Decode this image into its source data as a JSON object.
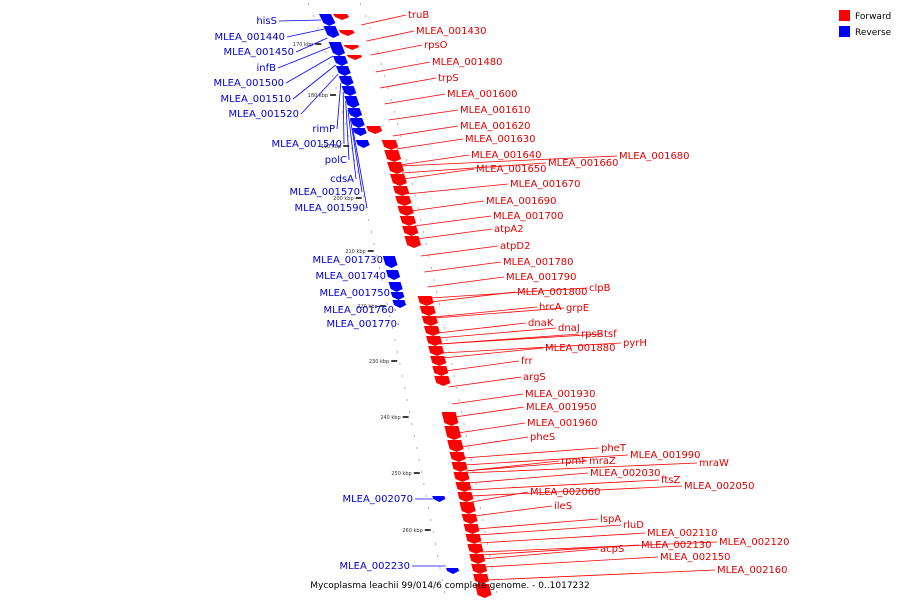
{
  "caption": "Mycoplasma leachii 99/014/6 complete genome. - 0..1017232",
  "legend": [
    {
      "label": "Forward",
      "color": "#ff0000"
    },
    {
      "label": "Reverse",
      "color": "#0000ff"
    }
  ],
  "ticks": [
    "170 kbp",
    "180 kbp",
    "190 kbp",
    "200 kbp",
    "210 kbp",
    "220 kbp",
    "230 kbp",
    "240 kbp",
    "250 kbp",
    "260 kbp"
  ],
  "genes_forward": [
    "truB",
    "MLEA_001430",
    "rpsO",
    "MLEA_001480",
    "trpS",
    "MLEA_001600",
    "MLEA_001610",
    "MLEA_001620",
    "MLEA_001630",
    "MLEA_001640",
    "MLEA_001650",
    "MLEA_001660",
    "MLEA_001680",
    "MLEA_001670",
    "MLEA_001690",
    "MLEA_001700",
    "atpA2",
    "atpD2",
    "MLEA_001780",
    "MLEA_001790",
    "MLEA_001800",
    "clpB",
    "hrcA",
    "grpE",
    "dnaK",
    "dnaJ",
    "rpsB",
    "tsf",
    "MLEA_001880",
    "pyrH",
    "frr",
    "argS",
    "MLEA_001930",
    "MLEA_001950",
    "MLEA_001960",
    "pheS",
    "pheT",
    "MLEA_001990",
    "rpmF",
    "mraZ",
    "mraW",
    "MLEA_002030",
    "ftsZ",
    "MLEA_002050",
    "MLEA_002060",
    "ileS",
    "lspA",
    "rluD",
    "MLEA_002110",
    "MLEA_002120",
    "MLEA_002130",
    "acpS",
    "MLEA_002150",
    "MLEA_002160"
  ],
  "genes_reverse": [
    "hisS",
    "MLEA_001440",
    "MLEA_001450",
    "infB",
    "MLEA_001500",
    "MLEA_001510",
    "MLEA_001520",
    "rimP",
    "MLEA_001540",
    "polC",
    "cdsA",
    "MLEA_001570",
    "MLEA_001590",
    "MLEA_001730",
    "MLEA_001740",
    "MLEA_001750",
    "MLEA_001760",
    "MLEA_001770",
    "MLEA_002070",
    "MLEA_002230"
  ]
}
